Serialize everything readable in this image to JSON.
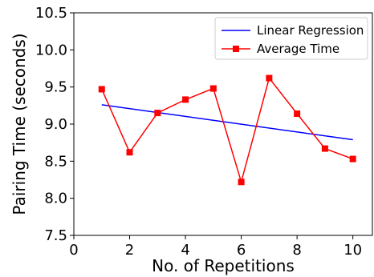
{
  "chart_data": {
    "type": "line",
    "xlabel": "No. of Repetitions",
    "ylabel": "Pairing Time (seconds)",
    "xlim": [
      0,
      10.7
    ],
    "ylim": [
      7.5,
      10.5
    ],
    "x_ticks": [
      0,
      2,
      4,
      6,
      8,
      10
    ],
    "y_ticks": [
      7.5,
      8.0,
      8.5,
      9.0,
      9.5,
      10.0,
      10.5
    ],
    "x_tick_labels": [
      "0",
      "2",
      "4",
      "6",
      "8",
      "10"
    ],
    "y_tick_labels": [
      "7.5",
      "8.0",
      "8.5",
      "9.0",
      "9.5",
      "10.0",
      "10.5"
    ],
    "legend_position": "top-right",
    "grid": false,
    "series": [
      {
        "name": "Linear Regression",
        "color": "#0000ff",
        "marker": "none",
        "x": [
          1,
          10
        ],
        "y": [
          9.26,
          8.79
        ]
      },
      {
        "name": "Average Time",
        "color": "#ff0000",
        "marker": "square",
        "x": [
          1,
          2,
          3,
          4,
          5,
          6,
          7,
          8,
          9,
          10
        ],
        "y": [
          9.47,
          8.62,
          9.15,
          9.33,
          9.48,
          8.22,
          9.62,
          9.14,
          8.67,
          8.53
        ]
      }
    ]
  }
}
